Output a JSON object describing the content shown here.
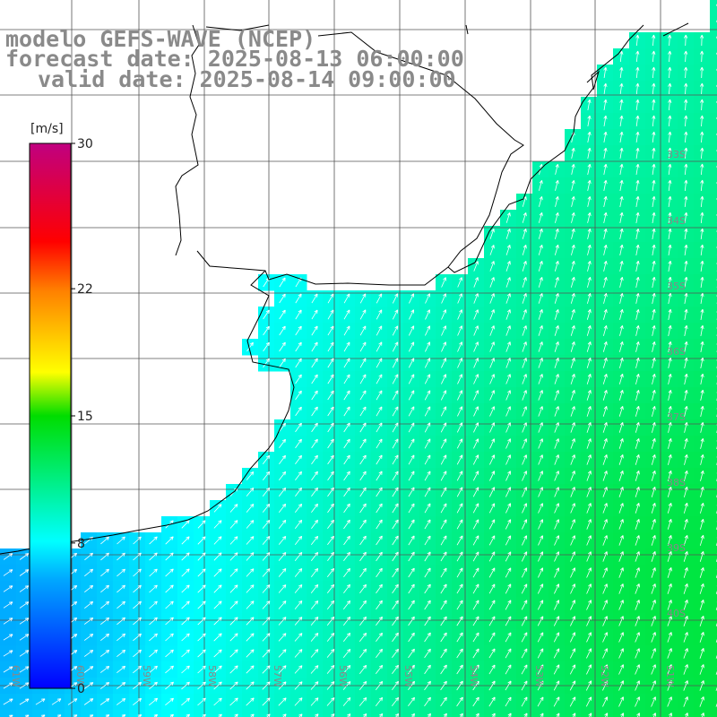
{
  "title": {
    "line1": "modelo GEFS-WAVE (NCEP)",
    "line2": "forecast date: 2025-08-13 06:00:00",
    "line3": "valid date: 2025-08-14 09:00:00"
  },
  "colorbar": {
    "unit": "[m/s]",
    "ticks": [
      "30",
      "22",
      "15",
      "8",
      "0"
    ],
    "tick_values": [
      30,
      22,
      15,
      8,
      0
    ],
    "range": [
      0,
      30
    ],
    "stops": [
      "#0000ff",
      "#00b0ff",
      "#00ffff",
      "#00dd00",
      "#ffff00",
      "#ff8000",
      "#ff0000",
      "#c00080"
    ]
  },
  "map": {
    "variable": "wind speed and direction",
    "lat_labels": [
      "33S",
      "34S",
      "35S",
      "36S",
      "37S",
      "38S",
      "39S",
      "40S"
    ],
    "lon_labels": [
      "61W",
      "60W",
      "59W",
      "58W",
      "57W",
      "56W",
      "55W",
      "54W",
      "53W",
      "52W",
      "51W"
    ],
    "land_color": "#ffffff",
    "coast_color": "#000000",
    "grid_color": "#555555"
  }
}
